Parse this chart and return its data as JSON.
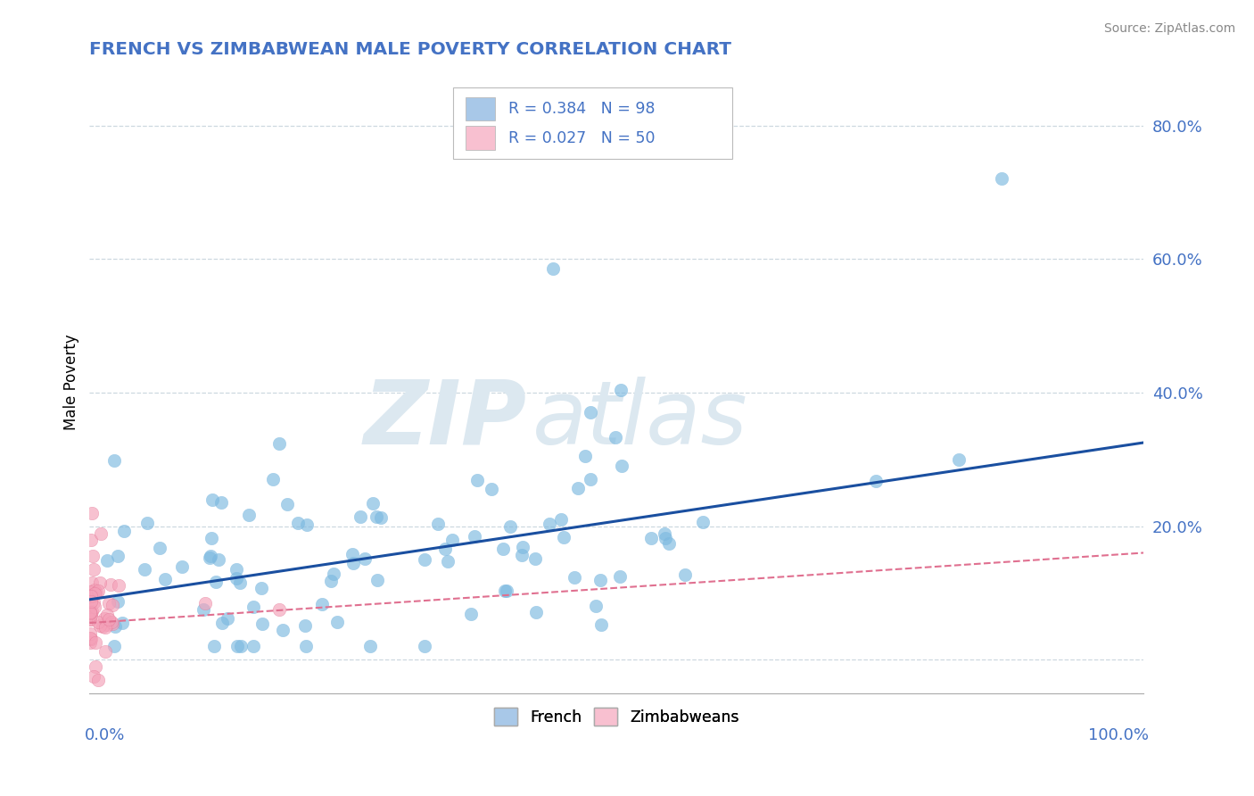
{
  "title": "FRENCH VS ZIMBABWEAN MALE POVERTY CORRELATION CHART",
  "source": "Source: ZipAtlas.com",
  "ylabel": "Male Poverty",
  "french_color": "#7cb9e0",
  "french_edge": "#5a9dc8",
  "zimbabwe_color": "#f4a0b8",
  "zimbabwe_edge": "#e07090",
  "trend_french_color": "#1a4fa0",
  "trend_zimbabwe_color": "#e07090",
  "watermark_zip": "ZIP",
  "watermark_atlas": "atlas",
  "watermark_color": "#dce8f0",
  "title_color": "#4472c4",
  "axis_label_color": "#4472c4",
  "grid_color": "#c8d4dc",
  "legend_french_color": "#a8c8e8",
  "legend_zimb_color": "#f8c0d0",
  "french_R": 0.384,
  "french_N": 98,
  "zimbabwe_R": 0.027,
  "zimbabwe_N": 50,
  "ytick_positions": [
    0.0,
    0.2,
    0.4,
    0.6,
    0.8
  ],
  "ytick_labels": [
    "",
    "20.0%",
    "40.0%",
    "60.0%",
    "80.0%"
  ],
  "ymin": -0.05,
  "ymax": 0.88,
  "xmin": 0.0,
  "xmax": 1.0,
  "trend_french_y0": 0.09,
  "trend_french_y1": 0.325,
  "trend_zimb_y0": 0.055,
  "trend_zimb_y1": 0.16
}
